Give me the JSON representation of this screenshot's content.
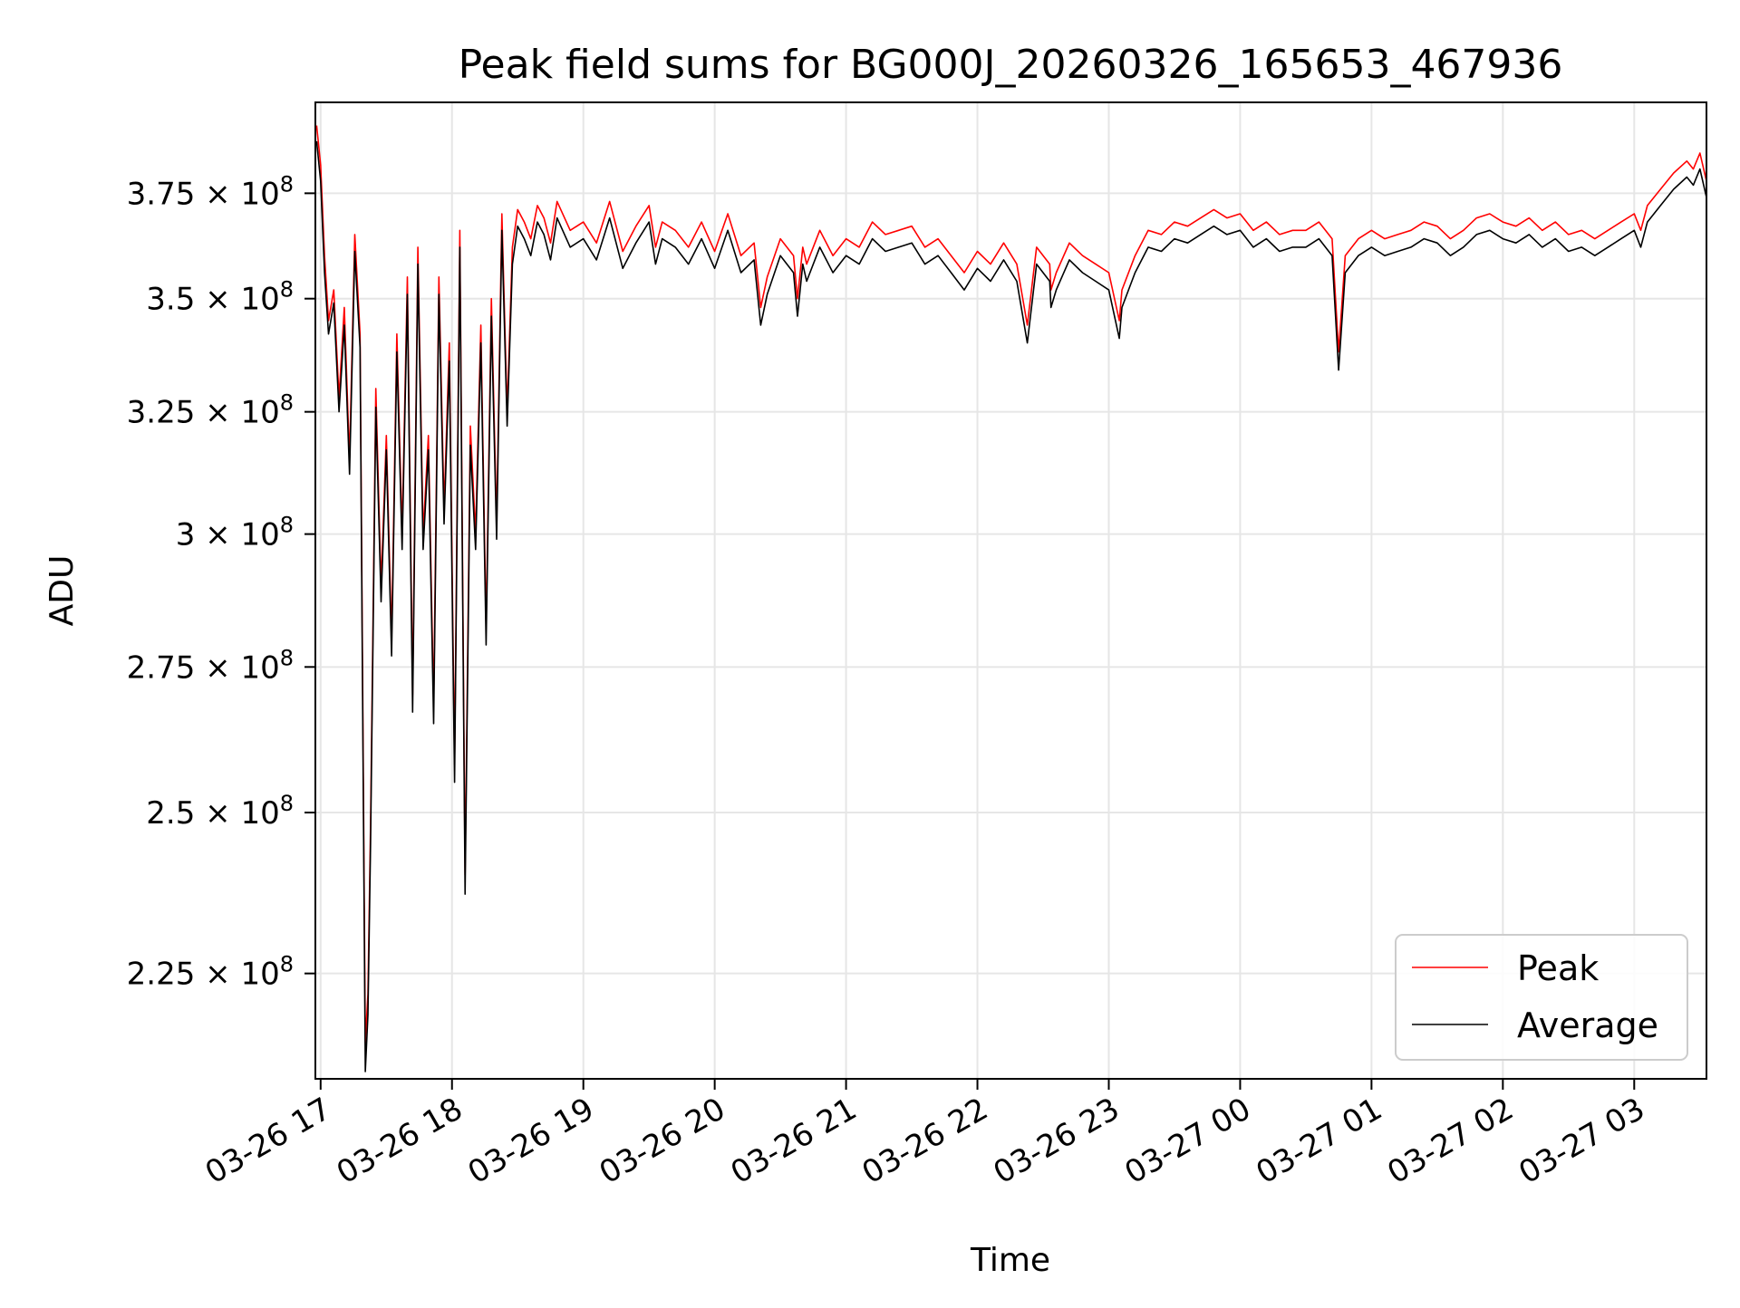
{
  "chart_data": {
    "type": "line",
    "title": "Peak field sums for BG000J_20260326_165653_467936",
    "xlabel": "Time",
    "ylabel": "ADU",
    "y_scale": "log",
    "ylim": [
      210000000,
      398000000
    ],
    "xlim_hours": [
      16.96,
      27.55
    ],
    "grid": true,
    "legend_position": "lower-right",
    "x_ticks": [
      {
        "hour": 17,
        "label": "03-26 17"
      },
      {
        "hour": 18,
        "label": "03-26 18"
      },
      {
        "hour": 19,
        "label": "03-26 19"
      },
      {
        "hour": 20,
        "label": "03-26 20"
      },
      {
        "hour": 21,
        "label": "03-26 21"
      },
      {
        "hour": 22,
        "label": "03-26 22"
      },
      {
        "hour": 23,
        "label": "03-26 23"
      },
      {
        "hour": 24,
        "label": "03-27 00"
      },
      {
        "hour": 25,
        "label": "03-27 01"
      },
      {
        "hour": 26,
        "label": "03-27 02"
      },
      {
        "hour": 27,
        "label": "03-27 03"
      }
    ],
    "y_ticks": [
      {
        "value": 225000000,
        "mantissa": "2.25"
      },
      {
        "value": 250000000,
        "mantissa": "2.5"
      },
      {
        "value": 275000000,
        "mantissa": "2.75"
      },
      {
        "value": 300000000,
        "mantissa": "3"
      },
      {
        "value": 325000000,
        "mantissa": "3.25"
      },
      {
        "value": 350000000,
        "mantissa": "3.5"
      },
      {
        "value": 375000000,
        "mantissa": "3.75"
      }
    ],
    "y_tick_exponent_base": "10",
    "y_tick_exponent": "8",
    "y_tick_multiply_sign": "×",
    "series": [
      {
        "name": "Peak",
        "color": "#ff0000",
        "x_hours": [
          16.97,
          17.0,
          17.03,
          17.06,
          17.1,
          17.14,
          17.18,
          17.22,
          17.26,
          17.3,
          17.34,
          17.36,
          17.38,
          17.42,
          17.46,
          17.5,
          17.54,
          17.58,
          17.62,
          17.66,
          17.7,
          17.74,
          17.78,
          17.82,
          17.86,
          17.9,
          17.94,
          17.98,
          18.02,
          18.06,
          18.1,
          18.14,
          18.18,
          18.22,
          18.26,
          18.3,
          18.34,
          18.38,
          18.42,
          18.46,
          18.5,
          18.55,
          18.6,
          18.65,
          18.7,
          18.75,
          18.8,
          18.9,
          19.0,
          19.1,
          19.2,
          19.3,
          19.4,
          19.5,
          19.55,
          19.6,
          19.7,
          19.8,
          19.9,
          20.0,
          20.1,
          20.2,
          20.3,
          20.35,
          20.4,
          20.5,
          20.6,
          20.63,
          20.67,
          20.7,
          20.8,
          20.9,
          21.0,
          21.1,
          21.2,
          21.3,
          21.4,
          21.5,
          21.6,
          21.7,
          21.8,
          21.9,
          22.0,
          22.1,
          22.2,
          22.3,
          22.38,
          22.45,
          22.55,
          22.56,
          22.6,
          22.7,
          22.8,
          22.9,
          23.0,
          23.08,
          23.1,
          23.2,
          23.3,
          23.4,
          23.5,
          23.6,
          23.7,
          23.8,
          23.9,
          24.0,
          24.1,
          24.2,
          24.3,
          24.4,
          24.5,
          24.6,
          24.7,
          24.75,
          24.8,
          24.9,
          25.0,
          25.1,
          25.2,
          25.3,
          25.4,
          25.5,
          25.6,
          25.7,
          25.8,
          25.9,
          26.0,
          26.1,
          26.2,
          26.3,
          26.4,
          26.5,
          26.6,
          26.7,
          26.8,
          26.9,
          27.0,
          27.05,
          27.1,
          27.2,
          27.3,
          27.4,
          27.45,
          27.5,
          27.55
        ],
        "values": [
          392000000,
          382000000,
          360000000,
          345000000,
          352000000,
          328000000,
          348000000,
          315000000,
          365000000,
          342000000,
          215000000,
          222000000,
          248000000,
          330000000,
          290000000,
          320000000,
          280000000,
          342000000,
          300000000,
          355000000,
          270000000,
          362000000,
          300000000,
          320000000,
          268000000,
          355000000,
          305000000,
          340000000,
          258000000,
          366000000,
          240000000,
          322000000,
          300000000,
          344000000,
          282000000,
          350000000,
          302000000,
          370000000,
          325000000,
          362000000,
          371000000,
          368000000,
          364000000,
          372000000,
          369000000,
          363000000,
          373000000,
          366000000,
          368000000,
          363000000,
          373000000,
          361000000,
          367000000,
          372000000,
          362000000,
          368000000,
          366000000,
          362000000,
          368000000,
          361000000,
          370000000,
          360000000,
          363000000,
          348000000,
          355000000,
          364000000,
          360000000,
          350000000,
          362000000,
          358000000,
          366000000,
          360000000,
          364000000,
          362000000,
          368000000,
          365000000,
          366000000,
          367000000,
          362000000,
          364000000,
          360000000,
          356000000,
          361000000,
          358000000,
          363000000,
          358000000,
          344000000,
          362000000,
          358000000,
          352000000,
          356000000,
          363000000,
          360000000,
          358000000,
          356000000,
          345000000,
          352000000,
          360000000,
          366000000,
          365000000,
          368000000,
          367000000,
          369000000,
          371000000,
          369000000,
          370000000,
          366000000,
          368000000,
          365000000,
          366000000,
          366000000,
          368000000,
          364000000,
          338000000,
          360000000,
          364000000,
          366000000,
          364000000,
          365000000,
          366000000,
          368000000,
          367000000,
          364000000,
          366000000,
          369000000,
          370000000,
          368000000,
          367000000,
          369000000,
          366000000,
          368000000,
          365000000,
          366000000,
          364000000,
          366000000,
          368000000,
          370000000,
          366000000,
          372000000,
          376000000,
          380000000,
          383000000,
          381000000,
          385000000,
          378000000
        ]
      },
      {
        "name": "Average",
        "color": "#000000",
        "x_hours": [
          16.97,
          17.0,
          17.03,
          17.06,
          17.1,
          17.14,
          17.18,
          17.22,
          17.26,
          17.3,
          17.34,
          17.36,
          17.38,
          17.42,
          17.46,
          17.5,
          17.54,
          17.58,
          17.62,
          17.66,
          17.7,
          17.74,
          17.78,
          17.82,
          17.86,
          17.9,
          17.94,
          17.98,
          18.02,
          18.06,
          18.1,
          18.14,
          18.18,
          18.22,
          18.26,
          18.3,
          18.34,
          18.38,
          18.42,
          18.46,
          18.5,
          18.55,
          18.6,
          18.65,
          18.7,
          18.75,
          18.8,
          18.9,
          19.0,
          19.1,
          19.2,
          19.3,
          19.4,
          19.5,
          19.55,
          19.6,
          19.7,
          19.8,
          19.9,
          20.0,
          20.1,
          20.2,
          20.3,
          20.35,
          20.4,
          20.5,
          20.6,
          20.63,
          20.67,
          20.7,
          20.8,
          20.9,
          21.0,
          21.1,
          21.2,
          21.3,
          21.4,
          21.5,
          21.6,
          21.7,
          21.8,
          21.9,
          22.0,
          22.1,
          22.2,
          22.3,
          22.38,
          22.45,
          22.55,
          22.56,
          22.6,
          22.7,
          22.8,
          22.9,
          23.0,
          23.08,
          23.1,
          23.2,
          23.3,
          23.4,
          23.5,
          23.6,
          23.7,
          23.8,
          23.9,
          24.0,
          24.1,
          24.2,
          24.3,
          24.4,
          24.5,
          24.6,
          24.7,
          24.75,
          24.8,
          24.9,
          25.0,
          25.1,
          25.2,
          25.3,
          25.4,
          25.5,
          25.6,
          25.7,
          25.8,
          25.9,
          26.0,
          26.1,
          26.2,
          26.3,
          26.4,
          26.5,
          26.6,
          26.7,
          26.8,
          26.9,
          27.0,
          27.05,
          27.1,
          27.2,
          27.3,
          27.4,
          27.45,
          27.5,
          27.55
        ],
        "values": [
          388000000,
          378000000,
          356000000,
          342000000,
          349000000,
          325000000,
          344000000,
          312000000,
          361000000,
          339000000,
          211000000,
          219000000,
          245000000,
          326000000,
          287000000,
          317000000,
          277000000,
          338000000,
          297000000,
          351000000,
          267000000,
          358000000,
          297000000,
          317000000,
          265000000,
          351000000,
          302000000,
          336000000,
          255000000,
          362000000,
          237000000,
          318000000,
          297000000,
          340000000,
          279000000,
          346000000,
          299000000,
          366000000,
          322000000,
          358000000,
          367000000,
          364000000,
          360000000,
          368000000,
          365000000,
          359000000,
          369000000,
          362000000,
          364000000,
          359000000,
          369000000,
          357000000,
          363000000,
          368000000,
          358000000,
          364000000,
          362000000,
          358000000,
          364000000,
          357000000,
          366000000,
          356000000,
          359000000,
          344000000,
          351000000,
          360000000,
          356000000,
          346000000,
          358000000,
          354000000,
          362000000,
          356000000,
          360000000,
          358000000,
          364000000,
          361000000,
          362000000,
          363000000,
          358000000,
          360000000,
          356000000,
          352000000,
          357000000,
          354000000,
          359000000,
          354000000,
          340000000,
          358000000,
          354000000,
          348000000,
          352000000,
          359000000,
          356000000,
          354000000,
          352000000,
          341000000,
          348000000,
          356000000,
          362000000,
          361000000,
          364000000,
          363000000,
          365000000,
          367000000,
          365000000,
          366000000,
          362000000,
          364000000,
          361000000,
          362000000,
          362000000,
          364000000,
          360000000,
          334000000,
          356000000,
          360000000,
          362000000,
          360000000,
          361000000,
          362000000,
          364000000,
          363000000,
          360000000,
          362000000,
          365000000,
          366000000,
          364000000,
          363000000,
          365000000,
          362000000,
          364000000,
          361000000,
          362000000,
          360000000,
          362000000,
          364000000,
          366000000,
          362000000,
          368000000,
          372000000,
          376000000,
          379000000,
          377000000,
          381000000,
          374000000
        ]
      }
    ]
  }
}
